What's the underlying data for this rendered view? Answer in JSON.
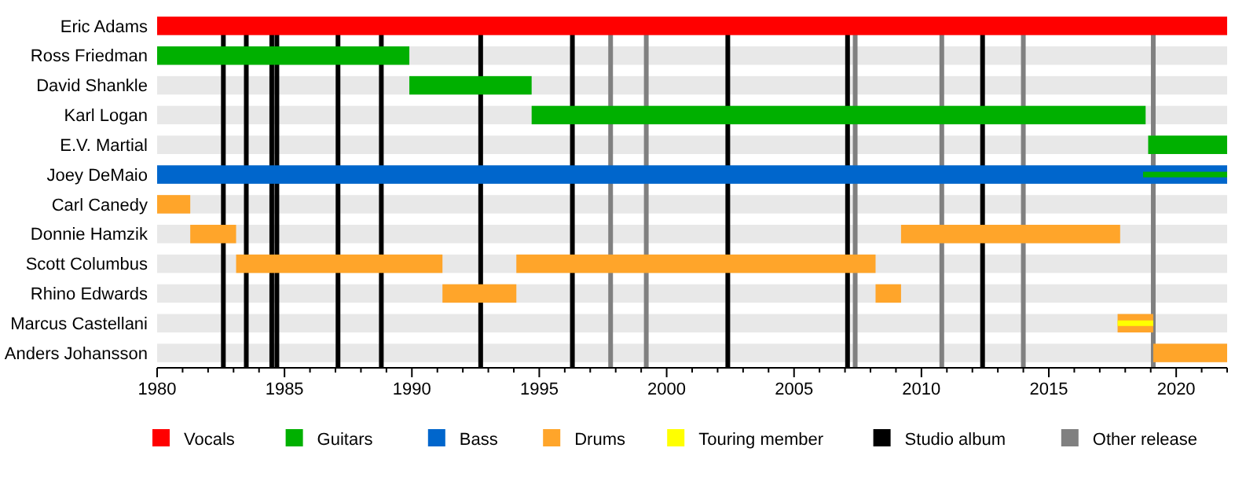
{
  "chart_data": {
    "type": "bar",
    "orientation": "horizontal",
    "categories": [
      "Eric Adams",
      "Ross Friedman",
      "David Shankle",
      "Karl Logan",
      "E.V. Martial",
      "Joey DeMaio",
      "Carl Canedy",
      "Donnie Hamzik",
      "Scott Columbus",
      "Rhino Edwards",
      "Marcus Castellani",
      "Anders Johansson"
    ],
    "series": [
      {
        "name": "Vocals",
        "color": "#ff0000",
        "base": [
          1980,
          null,
          null,
          null,
          null,
          null,
          null,
          null,
          null,
          null,
          null,
          null
        ],
        "values": [
          42,
          null,
          null,
          null,
          null,
          null,
          null,
          null,
          null,
          null,
          null,
          null
        ]
      },
      {
        "name": "Guitars",
        "color": "#00b000",
        "base": [
          null,
          1980,
          1989.9,
          1994.7,
          2018.9,
          2018.7,
          null,
          null,
          null,
          null,
          null,
          null
        ],
        "values": [
          null,
          9.9,
          4.8,
          24.1,
          3.1,
          3.3,
          null,
          null,
          null,
          null,
          null,
          null
        ]
      },
      {
        "name": "Bass",
        "color": "#0066cc",
        "base": [
          null,
          null,
          null,
          null,
          null,
          1980,
          null,
          null,
          null,
          null,
          null,
          null
        ],
        "values": [
          null,
          null,
          null,
          null,
          null,
          42,
          null,
          null,
          null,
          null,
          null,
          null
        ]
      },
      {
        "name": "Drums",
        "color": "#ffa52a",
        "base": [
          null,
          null,
          null,
          null,
          null,
          null,
          1980,
          1981.3,
          1983.1,
          1991.2,
          2017.7,
          2019.1
        ],
        "values": [
          null,
          null,
          null,
          null,
          null,
          null,
          1.3,
          1.8,
          8.1,
          2.9,
          1.4,
          2.9
        ]
      },
      {
        "color": "#ffa52a",
        "base": [
          null,
          null,
          null,
          null,
          null,
          null,
          null,
          2009.2,
          1994.1,
          2008.2,
          null,
          null
        ],
        "values": [
          null,
          null,
          null,
          null,
          null,
          null,
          null,
          8.6,
          14.1,
          1.0,
          null,
          null
        ]
      },
      {
        "name": "Touring member",
        "color": "#ffff00",
        "base": [
          null,
          null,
          null,
          null,
          null,
          null,
          null,
          null,
          null,
          null,
          2017.7,
          null
        ],
        "values": [
          null,
          null,
          null,
          null,
          null,
          null,
          null,
          null,
          null,
          null,
          1.4,
          null
        ]
      }
    ],
    "xlim": [
      1980,
      2022
    ],
    "xticks": [
      1980,
      {
        "value": 1981,
        "label": null
      },
      {
        "value": 1982,
        "label": null
      },
      {
        "value": 1983,
        "label": null
      },
      {
        "value": 1984,
        "label": null
      },
      1985,
      {
        "value": 1986,
        "label": null
      },
      {
        "value": 1987,
        "label": null
      },
      {
        "value": 1988,
        "label": null
      },
      {
        "value": 1989,
        "label": null
      },
      1990,
      {
        "value": 1991,
        "label": null
      },
      {
        "value": 1992,
        "label": null
      },
      {
        "value": 1993,
        "label": null
      },
      {
        "value": 1994,
        "label": null
      },
      1995,
      {
        "value": 1996,
        "label": null
      },
      {
        "value": 1997,
        "label": null
      },
      {
        "value": 1998,
        "label": null
      },
      {
        "value": 1999,
        "label": null
      },
      2000,
      {
        "value": 2001,
        "label": null
      },
      {
        "value": 2002,
        "label": null
      },
      {
        "value": 2003,
        "label": null
      },
      {
        "value": 2004,
        "label": null
      },
      2005,
      {
        "value": 2006,
        "label": null
      },
      {
        "value": 2007,
        "label": null
      },
      {
        "value": 2008,
        "label": null
      },
      {
        "value": 2009,
        "label": null
      },
      2010,
      {
        "value": 2011,
        "label": null
      },
      {
        "value": 2012,
        "label": null
      },
      {
        "value": 2013,
        "label": null
      },
      {
        "value": 2014,
        "label": null
      },
      2015,
      {
        "value": 2016,
        "label": null
      },
      {
        "value": 2017,
        "label": null
      },
      {
        "value": 2018,
        "label": null
      },
      {
        "value": 2019,
        "label": null
      },
      2020,
      {
        "value": 2021,
        "label": null
      },
      {
        "value": 2022,
        "label": null
      }
    ],
    "ref_lines": [
      {
        "axis": "x",
        "value": 1982.6,
        "label": "Studio album",
        "color": "#000000"
      },
      {
        "axis": "x",
        "value": 1983.5,
        "color": "#000000"
      },
      {
        "axis": "x",
        "value": 1984.5,
        "color": "#000000"
      },
      {
        "axis": "x",
        "value": 1984.7,
        "color": "#000000"
      },
      {
        "axis": "x",
        "value": 1987.1,
        "color": "#000000"
      },
      {
        "axis": "x",
        "value": 1988.8,
        "color": "#000000"
      },
      {
        "axis": "x",
        "value": 1992.7,
        "color": "#000000"
      },
      {
        "axis": "x",
        "value": 1996.3,
        "color": "#000000"
      },
      {
        "axis": "x",
        "value": 2002.4,
        "color": "#000000"
      },
      {
        "axis": "x",
        "value": 2007.1,
        "color": "#000000"
      },
      {
        "axis": "x",
        "value": 2012.4,
        "color": "#000000"
      },
      {
        "axis": "x",
        "value": 1997.8,
        "label": "Other release",
        "color": "#808080"
      },
      {
        "axis": "x",
        "value": 1999.2,
        "color": "#808080"
      },
      {
        "axis": "x",
        "value": 2007.4,
        "color": "#808080"
      },
      {
        "axis": "x",
        "value": 2010.8,
        "color": "#808080"
      },
      {
        "axis": "x",
        "value": 2014.0,
        "color": "#808080"
      },
      {
        "axis": "x",
        "value": 2019.1,
        "color": "#808080"
      }
    ],
    "legend": "bottom"
  }
}
